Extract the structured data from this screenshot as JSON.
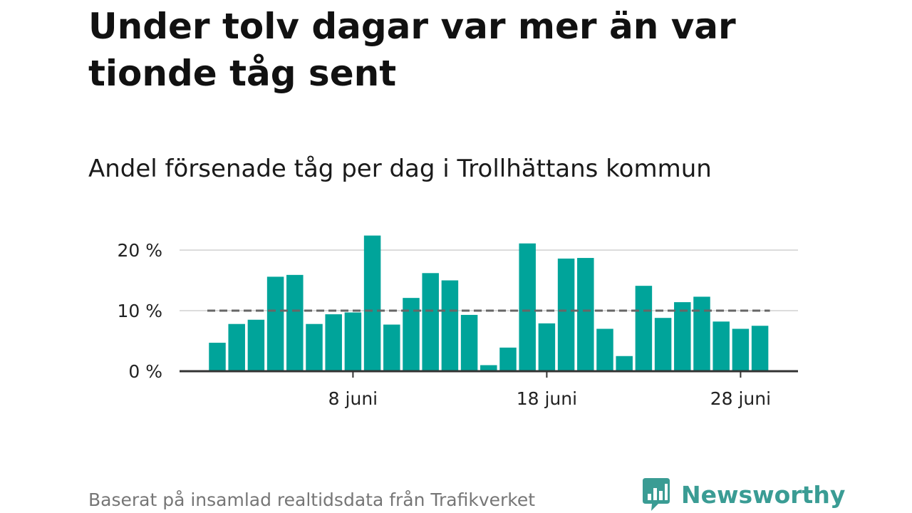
{
  "title": "Under tolv dagar var mer än var tionde tåg sent",
  "subtitle": "Andel försenade tåg per dag i Trollhättans kommun",
  "source": "Baserat på insamlad realtidsdata från Trafikverket",
  "brand": {
    "name": "Newsworthy",
    "icon": "newsworthy-logo-icon",
    "color": "#3a9c94"
  },
  "chart_data": {
    "type": "bar",
    "x_unit": "day of June",
    "x": [
      1,
      2,
      3,
      4,
      5,
      6,
      7,
      8,
      9,
      10,
      11,
      12,
      13,
      14,
      15,
      16,
      17,
      18,
      19,
      20,
      21,
      22,
      23,
      24,
      25,
      26,
      27,
      28,
      29
    ],
    "values": [
      4.7,
      7.8,
      8.5,
      15.6,
      15.9,
      7.8,
      9.4,
      9.7,
      22.4,
      7.7,
      12.1,
      16.2,
      15.0,
      9.3,
      1.0,
      3.9,
      21.1,
      7.9,
      18.6,
      18.7,
      7.0,
      2.5,
      14.1,
      8.8,
      11.4,
      12.3,
      8.2,
      7.0,
      7.5
    ],
    "ylim": [
      0,
      23
    ],
    "yticks": [
      0,
      10,
      20
    ],
    "ytick_labels": [
      "0 %",
      "10 %",
      "20 %"
    ],
    "xticks": [
      8,
      18,
      28
    ],
    "xtick_labels": [
      "8 juni",
      "18 juni",
      "28 juni"
    ],
    "reference_line": {
      "value": 10,
      "style": "dashed",
      "color": "#666666"
    },
    "bar_color": "#00a49a",
    "grid": true
  }
}
